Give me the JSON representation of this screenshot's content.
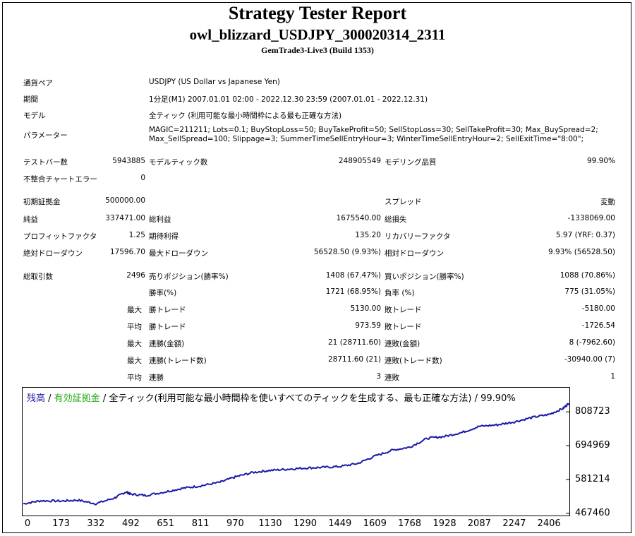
{
  "header": {
    "title": "Strategy Tester Report",
    "ea": "owl_blizzard_USDJPY_300020314_2311",
    "server": "GemTrade3-Live3 (Build 1353)"
  },
  "info": {
    "symbol_label": "通貨ペア",
    "symbol": "USDJPY (US Dollar vs Japanese Yen)",
    "period_label": "期間",
    "period": "1分足(M1) 2007.01.01 02:00 - 2022.12.30 23:59 (2007.01.01 - 2022.12.31)",
    "model_label": "モデル",
    "model": "全ティック (利用可能な最小時間枠による最も正確な方法)",
    "params_label": "パラメーター",
    "params_line1": "MAGIC=211211; Lots=0.1; BuyStopLoss=50; BuyTakeProfit=50; SellStopLoss=30; SellTakeProfit=30; Max_BuySpread=2;",
    "params_line2": "Max_SellSpread=100; Slippage=3; SummerTimeSellEntryHour=3; WinterTimeSellEntryHour=2; SellExitTime=\"8:00\";"
  },
  "stats": {
    "bars_label": "テストバー数",
    "bars": "5943885",
    "ticks_label": "モデルティック数",
    "ticks": "248905549",
    "quality_label": "モデリング品質",
    "quality": "99.90%",
    "mismatch_label": "不整合チャートエラー",
    "mismatch": "0",
    "deposit_label": "初期証拠金",
    "deposit": "500000.00",
    "spread_label": "スプレッド",
    "spread": "変動",
    "net_label": "純益",
    "net": "337471.00",
    "gross_profit_label": "総利益",
    "gross_profit": "1675540.00",
    "gross_loss_label": "総損失",
    "gross_loss": "-1338069.00",
    "pf_label": "プロフィットファクタ",
    "pf": "1.25",
    "expected_label": "期待利得",
    "expected": "135.20",
    "recovery_label": "リカバリーファクタ",
    "recovery": "5.97 (YRF: 0.37)",
    "abs_dd_label": "絶対ドローダウン",
    "abs_dd": "17596.70",
    "max_dd_label": "最大ドローダウン",
    "max_dd": "56528.50 (9.93%)",
    "rel_dd_label": "相対ドローダウン",
    "rel_dd": "9.93% (56528.50)",
    "trades_label": "総取引数",
    "trades": "2496",
    "short_label": "売りポジション(勝率%)",
    "short": "1408 (67.47%)",
    "long_label": "買いポジション(勝率%)",
    "long": "1088 (70.86%)",
    "winrate_label": "勝率(%)",
    "winrate": "1721 (68.95%)",
    "lossrate_label": "負率 (%)",
    "lossrate": "775 (31.05%)",
    "max_label": "最大",
    "avg_label": "平均",
    "win_trade_label": "勝トレード",
    "max_win": "5130.00",
    "avg_win": "973.59",
    "loss_trade_label": "敗トレード",
    "max_loss": "-5180.00",
    "avg_loss": "-1726.54",
    "consec_win_money_label": "連勝(金額)",
    "consec_win_money": "21 (28711.60)",
    "consec_loss_money_label": "連敗(金額)",
    "consec_loss_money": "8 (-7962.60)",
    "consec_win_trades_label": "連勝(トレード数)",
    "consec_win_trades": "28711.60 (21)",
    "consec_loss_trades_label": "連敗(トレード数)",
    "consec_loss_trades": "-30940.00 (7)",
    "avg_consec_win_label": "連勝",
    "avg_consec_win": "3",
    "avg_consec_loss_label": "連敗",
    "avg_consec_loss": "1"
  },
  "legend": {
    "balance": "残高",
    "sep1": " / ",
    "equity": "有効証拠金",
    "rest": " / 全ティック(利用可能な最小時間枠を使いすべてのティックを生成する、最も正確な方法) / 99.90%"
  },
  "colors": {
    "balance": "#1a1aa6",
    "equity": "#2aa81a",
    "grid": "#c8c8c8"
  },
  "chart_data": {
    "type": "line",
    "series": [
      {
        "name": "残高",
        "x": [
          0,
          80,
          173,
          250,
          332,
          420,
          470,
          492,
          560,
          651,
          730,
          811,
          900,
          970,
          1050,
          1130,
          1210,
          1290,
          1370,
          1449,
          1530,
          1609,
          1690,
          1768,
          1850,
          1928,
          2010,
          2087,
          2170,
          2247,
          2330,
          2406,
          2470,
          2496
        ],
        "values": [
          500000,
          510000,
          509000,
          512000,
          500000,
          520000,
          540000,
          532000,
          528000,
          540000,
          552000,
          560000,
          572000,
          590000,
          605000,
          612000,
          616000,
          620000,
          622000,
          625000,
          635000,
          660000,
          680000,
          690000,
          720000,
          726000,
          740000,
          760000,
          765000,
          775000,
          790000,
          800000,
          820000,
          837471
        ]
      }
    ],
    "xticks": [
      "0",
      "173",
      "332",
      "492",
      "651",
      "811",
      "970",
      "1130",
      "1290",
      "1449",
      "1609",
      "1768",
      "1928",
      "2087",
      "2247",
      "2406"
    ],
    "yticks": [
      "808723",
      "694969",
      "581214",
      "467460"
    ],
    "xlim": [
      0,
      2496
    ],
    "ylim": [
      467460,
      840000
    ]
  }
}
